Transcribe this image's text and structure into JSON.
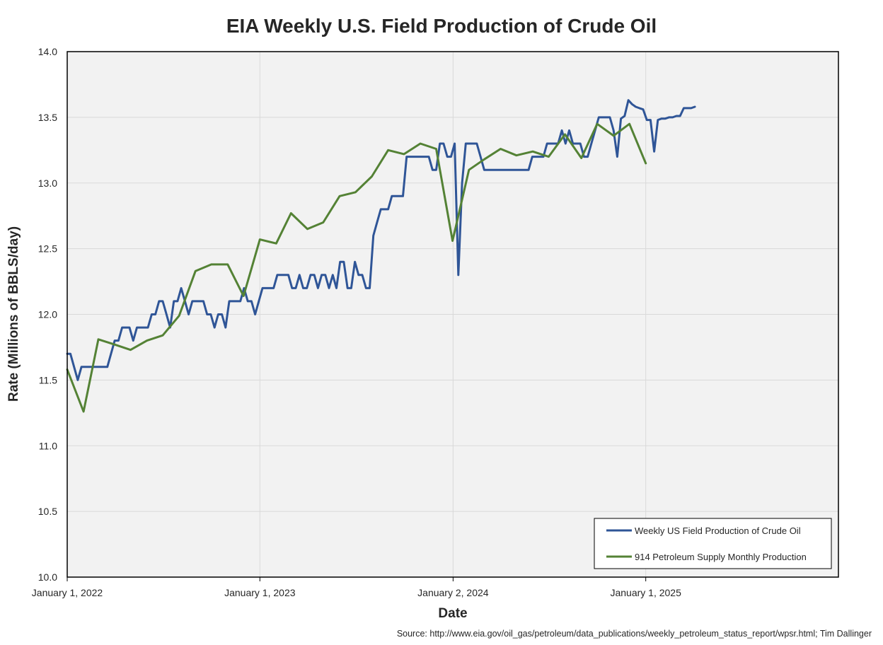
{
  "chart_data": {
    "type": "line",
    "title": "EIA Weekly U.S. Field Production of Crude Oil",
    "xlabel": "Date",
    "ylabel": "Rate (Millions of BBLS/day)",
    "ylim": [
      10.0,
      14.0
    ],
    "yticks": [
      "10.0",
      "10.5",
      "11.0",
      "11.5",
      "12.0",
      "12.5",
      "13.0",
      "13.5",
      "14.0"
    ],
    "xlim": [
      "2022-01-01",
      "2026-01-01"
    ],
    "xticks": [
      {
        "date": "2022-01-01",
        "label": "January 1, 2022"
      },
      {
        "date": "2023-01-01",
        "label": "January 1, 2023"
      },
      {
        "date": "2024-01-02",
        "label": "January 2, 2024"
      },
      {
        "date": "2025-01-01",
        "label": "January 1, 2025"
      }
    ],
    "grid": true,
    "legend_position": "bottom-right",
    "source": "Source: http://www.eia.gov/oil_gas/petroleum/data_publications/weekly_petroleum_status_report/wpsr.html; Tim Dallinger",
    "series": [
      {
        "name": "Weekly US Field Production of Crude Oil",
        "color": "#2f5597",
        "points": [
          [
            "2022-01-01",
            11.7
          ],
          [
            "2022-01-07",
            11.7
          ],
          [
            "2022-01-14",
            11.6
          ],
          [
            "2022-01-21",
            11.5
          ],
          [
            "2022-01-28",
            11.6
          ],
          [
            "2022-02-04",
            11.6
          ],
          [
            "2022-02-11",
            11.6
          ],
          [
            "2022-02-18",
            11.6
          ],
          [
            "2022-02-25",
            11.6
          ],
          [
            "2022-03-04",
            11.6
          ],
          [
            "2022-03-11",
            11.6
          ],
          [
            "2022-03-18",
            11.6
          ],
          [
            "2022-03-25",
            11.7
          ],
          [
            "2022-04-01",
            11.8
          ],
          [
            "2022-04-08",
            11.8
          ],
          [
            "2022-04-15",
            11.9
          ],
          [
            "2022-04-22",
            11.9
          ],
          [
            "2022-04-29",
            11.9
          ],
          [
            "2022-05-06",
            11.8
          ],
          [
            "2022-05-13",
            11.9
          ],
          [
            "2022-05-20",
            11.9
          ],
          [
            "2022-05-27",
            11.9
          ],
          [
            "2022-06-03",
            11.9
          ],
          [
            "2022-06-10",
            12.0
          ],
          [
            "2022-06-17",
            12.0
          ],
          [
            "2022-06-24",
            12.1
          ],
          [
            "2022-07-01",
            12.1
          ],
          [
            "2022-07-08",
            12.0
          ],
          [
            "2022-07-15",
            11.9
          ],
          [
            "2022-07-22",
            12.1
          ],
          [
            "2022-07-29",
            12.1
          ],
          [
            "2022-08-05",
            12.2
          ],
          [
            "2022-08-12",
            12.1
          ],
          [
            "2022-08-19",
            12.0
          ],
          [
            "2022-08-26",
            12.1
          ],
          [
            "2022-09-02",
            12.1
          ],
          [
            "2022-09-09",
            12.1
          ],
          [
            "2022-09-16",
            12.1
          ],
          [
            "2022-09-23",
            12.0
          ],
          [
            "2022-09-30",
            12.0
          ],
          [
            "2022-10-07",
            11.9
          ],
          [
            "2022-10-14",
            12.0
          ],
          [
            "2022-10-21",
            12.0
          ],
          [
            "2022-10-28",
            11.9
          ],
          [
            "2022-11-04",
            12.1
          ],
          [
            "2022-11-11",
            12.1
          ],
          [
            "2022-11-18",
            12.1
          ],
          [
            "2022-11-25",
            12.1
          ],
          [
            "2022-12-02",
            12.2
          ],
          [
            "2022-12-09",
            12.1
          ],
          [
            "2022-12-16",
            12.1
          ],
          [
            "2022-12-23",
            12.0
          ],
          [
            "2022-12-30",
            12.1
          ],
          [
            "2023-01-06",
            12.2
          ],
          [
            "2023-01-13",
            12.2
          ],
          [
            "2023-01-20",
            12.2
          ],
          [
            "2023-01-27",
            12.2
          ],
          [
            "2023-02-03",
            12.3
          ],
          [
            "2023-02-10",
            12.3
          ],
          [
            "2023-02-17",
            12.3
          ],
          [
            "2023-02-24",
            12.3
          ],
          [
            "2023-03-03",
            12.2
          ],
          [
            "2023-03-10",
            12.2
          ],
          [
            "2023-03-17",
            12.3
          ],
          [
            "2023-03-24",
            12.2
          ],
          [
            "2023-03-31",
            12.2
          ],
          [
            "2023-04-07",
            12.3
          ],
          [
            "2023-04-14",
            12.3
          ],
          [
            "2023-04-21",
            12.2
          ],
          [
            "2023-04-28",
            12.3
          ],
          [
            "2023-05-05",
            12.3
          ],
          [
            "2023-05-12",
            12.2
          ],
          [
            "2023-05-19",
            12.3
          ],
          [
            "2023-05-26",
            12.2
          ],
          [
            "2023-06-02",
            12.4
          ],
          [
            "2023-06-09",
            12.4
          ],
          [
            "2023-06-16",
            12.2
          ],
          [
            "2023-06-23",
            12.2
          ],
          [
            "2023-06-30",
            12.4
          ],
          [
            "2023-07-07",
            12.3
          ],
          [
            "2023-07-14",
            12.3
          ],
          [
            "2023-07-21",
            12.2
          ],
          [
            "2023-07-28",
            12.2
          ],
          [
            "2023-08-04",
            12.6
          ],
          [
            "2023-08-11",
            12.7
          ],
          [
            "2023-08-18",
            12.8
          ],
          [
            "2023-08-25",
            12.8
          ],
          [
            "2023-09-01",
            12.8
          ],
          [
            "2023-09-08",
            12.9
          ],
          [
            "2023-09-15",
            12.9
          ],
          [
            "2023-09-22",
            12.9
          ],
          [
            "2023-09-29",
            12.9
          ],
          [
            "2023-10-06",
            13.2
          ],
          [
            "2023-10-13",
            13.2
          ],
          [
            "2023-10-20",
            13.2
          ],
          [
            "2023-10-27",
            13.2
          ],
          [
            "2023-11-03",
            13.2
          ],
          [
            "2023-11-10",
            13.2
          ],
          [
            "2023-11-17",
            13.2
          ],
          [
            "2023-11-24",
            13.1
          ],
          [
            "2023-12-01",
            13.1
          ],
          [
            "2023-12-08",
            13.3
          ],
          [
            "2023-12-15",
            13.3
          ],
          [
            "2023-12-22",
            13.2
          ],
          [
            "2023-12-29",
            13.2
          ],
          [
            "2024-01-05",
            13.3
          ],
          [
            "2024-01-12",
            12.3
          ],
          [
            "2024-01-19",
            13.0
          ],
          [
            "2024-01-26",
            13.3
          ],
          [
            "2024-02-02",
            13.3
          ],
          [
            "2024-02-09",
            13.3
          ],
          [
            "2024-02-16",
            13.3
          ],
          [
            "2024-02-23",
            13.2
          ],
          [
            "2024-03-01",
            13.1
          ],
          [
            "2024-03-08",
            13.1
          ],
          [
            "2024-03-15",
            13.1
          ],
          [
            "2024-03-22",
            13.1
          ],
          [
            "2024-03-29",
            13.1
          ],
          [
            "2024-04-05",
            13.1
          ],
          [
            "2024-04-12",
            13.1
          ],
          [
            "2024-04-19",
            13.1
          ],
          [
            "2024-04-26",
            13.1
          ],
          [
            "2024-05-03",
            13.1
          ],
          [
            "2024-05-10",
            13.1
          ],
          [
            "2024-05-17",
            13.1
          ],
          [
            "2024-05-24",
            13.1
          ],
          [
            "2024-05-31",
            13.2
          ],
          [
            "2024-06-07",
            13.2
          ],
          [
            "2024-06-14",
            13.2
          ],
          [
            "2024-06-21",
            13.2
          ],
          [
            "2024-06-28",
            13.3
          ],
          [
            "2024-07-05",
            13.3
          ],
          [
            "2024-07-12",
            13.3
          ],
          [
            "2024-07-19",
            13.3
          ],
          [
            "2024-07-26",
            13.4
          ],
          [
            "2024-08-02",
            13.3
          ],
          [
            "2024-08-09",
            13.4
          ],
          [
            "2024-08-16",
            13.3
          ],
          [
            "2024-08-23",
            13.3
          ],
          [
            "2024-08-30",
            13.3
          ],
          [
            "2024-09-06",
            13.2
          ],
          [
            "2024-09-13",
            13.2
          ],
          [
            "2024-09-20",
            13.3
          ],
          [
            "2024-09-27",
            13.4
          ],
          [
            "2024-10-04",
            13.5
          ],
          [
            "2024-10-11",
            13.5
          ],
          [
            "2024-10-18",
            13.5
          ],
          [
            "2024-10-25",
            13.5
          ],
          [
            "2024-11-01",
            13.4
          ],
          [
            "2024-11-08",
            13.2
          ],
          [
            "2024-11-15",
            13.49
          ],
          [
            "2024-11-22",
            13.51
          ],
          [
            "2024-11-29",
            13.63
          ],
          [
            "2024-12-06",
            13.6
          ],
          [
            "2024-12-13",
            13.58
          ],
          [
            "2024-12-20",
            13.57
          ],
          [
            "2024-12-27",
            13.56
          ],
          [
            "2025-01-03",
            13.48
          ],
          [
            "2025-01-10",
            13.48
          ],
          [
            "2025-01-17",
            13.24
          ],
          [
            "2025-01-24",
            13.48
          ],
          [
            "2025-01-31",
            13.49
          ],
          [
            "2025-02-07",
            13.49
          ],
          [
            "2025-02-14",
            13.5
          ],
          [
            "2025-02-21",
            13.5
          ],
          [
            "2025-02-28",
            13.51
          ],
          [
            "2025-03-07",
            13.51
          ],
          [
            "2025-03-14",
            13.57
          ],
          [
            "2025-03-21",
            13.57
          ],
          [
            "2025-03-28",
            13.57
          ],
          [
            "2025-04-04",
            13.58
          ]
        ]
      },
      {
        "name": "914 Petroleum Supply Monthly Production",
        "color": "#548235",
        "points": [
          [
            "2022-01-01",
            11.58
          ],
          [
            "2022-02-01",
            11.26
          ],
          [
            "2022-03-01",
            11.81
          ],
          [
            "2022-04-01",
            11.77
          ],
          [
            "2022-05-01",
            11.73
          ],
          [
            "2022-06-01",
            11.8
          ],
          [
            "2022-07-01",
            11.84
          ],
          [
            "2022-08-01",
            11.99
          ],
          [
            "2022-09-01",
            12.33
          ],
          [
            "2022-10-01",
            12.38
          ],
          [
            "2022-11-01",
            12.38
          ],
          [
            "2022-12-01",
            12.14
          ],
          [
            "2023-01-01",
            12.57
          ],
          [
            "2023-02-01",
            12.54
          ],
          [
            "2023-03-01",
            12.77
          ],
          [
            "2023-04-01",
            12.65
          ],
          [
            "2023-05-01",
            12.7
          ],
          [
            "2023-06-01",
            12.9
          ],
          [
            "2023-07-01",
            12.93
          ],
          [
            "2023-08-01",
            13.05
          ],
          [
            "2023-09-01",
            13.25
          ],
          [
            "2023-10-01",
            13.22
          ],
          [
            "2023-11-01",
            13.3
          ],
          [
            "2023-12-01",
            13.26
          ],
          [
            "2024-01-01",
            12.56
          ],
          [
            "2024-02-01",
            13.1
          ],
          [
            "2024-03-01",
            13.18
          ],
          [
            "2024-04-01",
            13.26
          ],
          [
            "2024-05-01",
            13.21
          ],
          [
            "2024-06-01",
            13.24
          ],
          [
            "2024-07-01",
            13.2
          ],
          [
            "2024-08-01",
            13.37
          ],
          [
            "2024-09-01",
            13.19
          ],
          [
            "2024-10-01",
            13.45
          ],
          [
            "2024-11-01",
            13.36
          ],
          [
            "2024-12-01",
            13.45
          ],
          [
            "2025-01-01",
            13.15
          ]
        ]
      }
    ]
  }
}
